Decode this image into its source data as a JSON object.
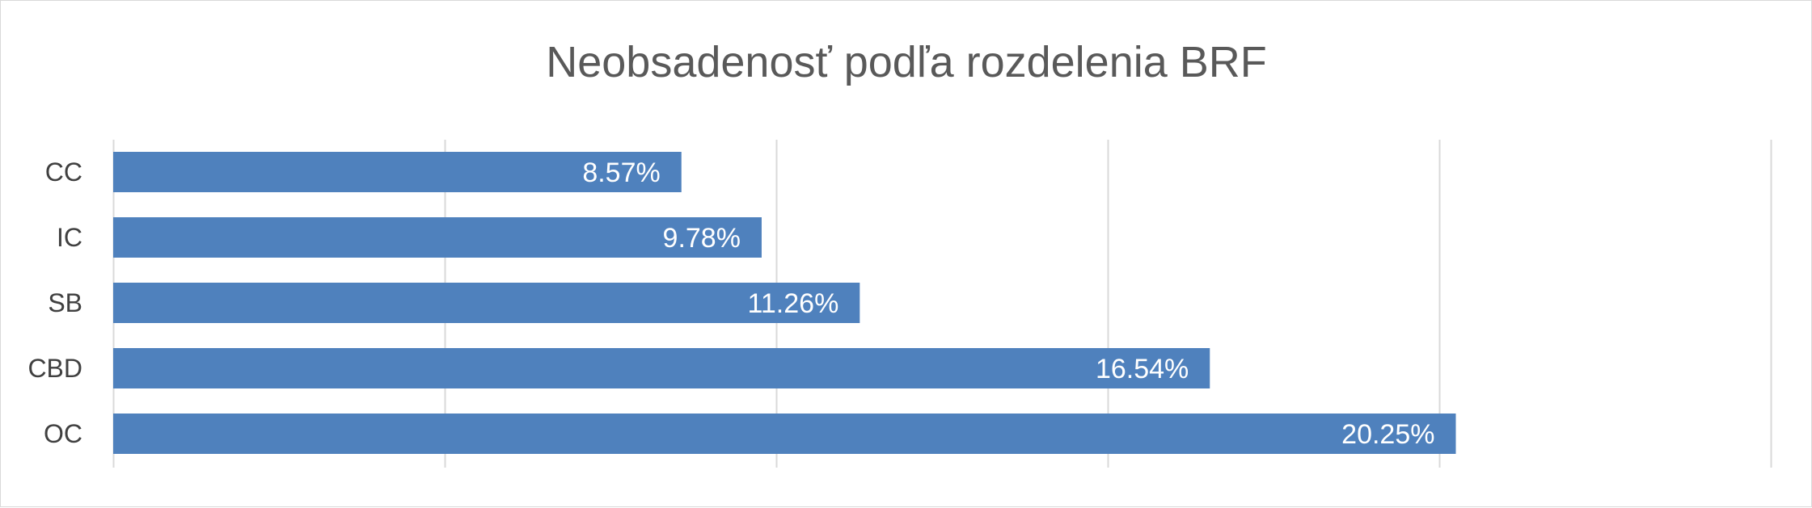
{
  "chart_data": {
    "type": "bar",
    "orientation": "horizontal",
    "title": "Neobsadenosť podľa rozdelenia BRF",
    "categories": [
      "CC",
      "IC",
      "SB",
      "CBD",
      "OC"
    ],
    "values": [
      8.57,
      9.78,
      11.26,
      16.54,
      20.25
    ],
    "value_labels": [
      "8.57%",
      "9.78%",
      "11.26%",
      "16.54%",
      "20.25%"
    ],
    "xlim": [
      0,
      25
    ],
    "gridlines_at": [
      0,
      5,
      10,
      15,
      20,
      25
    ],
    "grid": true,
    "x_tick_labels_visible": false,
    "legend": "none",
    "bar_color": "#4f81bd",
    "grid_color": "#d9d9d9"
  }
}
